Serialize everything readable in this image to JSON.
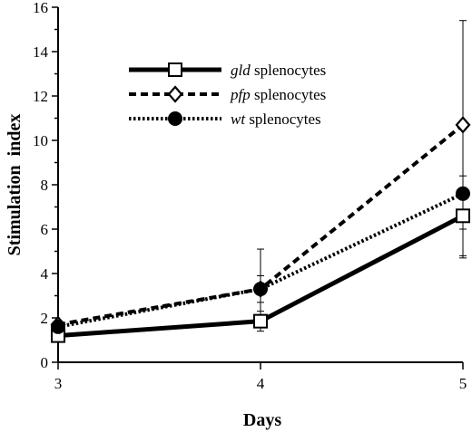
{
  "chart_data": {
    "type": "line",
    "xlabel": "Days",
    "ylabel": "Stimulation  index",
    "x": [
      3,
      4,
      5
    ],
    "xlim": [
      3,
      5
    ],
    "ylim": [
      0,
      16
    ],
    "xticks": [
      "3",
      "4",
      "5"
    ],
    "yticks": [
      "0",
      "2",
      "4",
      "6",
      "8",
      "10",
      "12",
      "14",
      "16"
    ],
    "grid": false,
    "legend_position": "top-left",
    "series": [
      {
        "name_italic": "gld",
        "name_rest": " splenocytes",
        "values": [
          1.2,
          1.85,
          6.6
        ],
        "error_low": [
          1.2,
          1.4,
          4.8
        ],
        "error_high": [
          1.2,
          2.3,
          8.4
        ],
        "line_style": "solid",
        "marker": "square-open",
        "color": "#000000"
      },
      {
        "name_italic": "pfp",
        "name_rest": " splenocytes",
        "values": [
          1.7,
          3.3,
          10.7
        ],
        "error_low": [
          1.7,
          2.0,
          6.0
        ],
        "error_high": [
          1.7,
          5.1,
          15.4
        ],
        "line_style": "dashed",
        "marker": "diamond-open",
        "color": "#000000"
      },
      {
        "name_italic": "wt",
        "name_rest": " splenocytes",
        "values": [
          1.6,
          3.3,
          7.6
        ],
        "error_low": [
          1.6,
          2.7,
          4.7
        ],
        "error_high": [
          1.6,
          3.9,
          10.5
        ],
        "line_style": "dotted",
        "marker": "circle-filled",
        "color": "#000000"
      }
    ]
  }
}
